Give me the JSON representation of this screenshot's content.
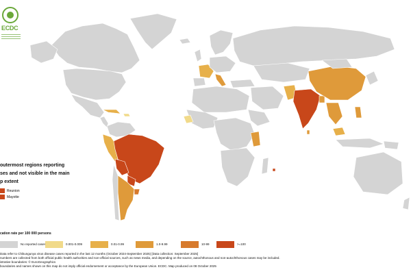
{
  "logo": {
    "text": "ECDC"
  },
  "outermost": {
    "title_lines": [
      "outermost regions reporting",
      "ses and not visible in the main",
      "p extent"
    ],
    "items": [
      {
        "label": "Reunion",
        "color": "#c8471a"
      },
      {
        "label": "Mayotte",
        "color": "#c8471a"
      }
    ]
  },
  "legend": {
    "title": "cation rate per 100 000 persons",
    "items": [
      {
        "label": "No reported cases",
        "color": "#d4d4d4"
      },
      {
        "label": "0.001-0.009",
        "color": "#f1da8a"
      },
      {
        "label": "0.01-0.99",
        "color": "#e7b04a"
      },
      {
        "label": "1.0-9.99",
        "color": "#df9a3a"
      },
      {
        "label": "10-99",
        "color": "#d77a2c"
      },
      {
        "label": ">=100",
        "color": "#c8471a"
      }
    ]
  },
  "notes": [
    "Data refer to Chikungunya virus disease cases reported in the last 12 months (October 2024-September 2025) [Data collection: September 2025]",
    "numbers are collected from both official public health authorities and non-official sources, such as news media, and depending on the source, autochthonous and non-autochthonous cases may be included.",
    "istrative boundaries: © EuroGeographics",
    "boundaries and names shown on this map do not imply official endorsement or acceptance by the European Union. ECDC. Map produced on 08 October 2025"
  ],
  "colors": {
    "no_cases": "#d4d4d4",
    "c1": "#f1da8a",
    "c2": "#e7b04a",
    "c3": "#df9a3a",
    "c4": "#d77a2c",
    "c5": "#c8471a",
    "border": "#ffffff"
  }
}
